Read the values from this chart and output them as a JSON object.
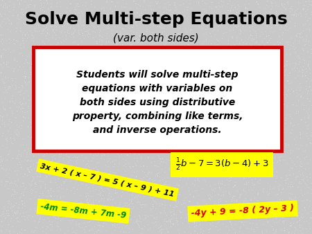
{
  "title_main": "Solve Multi-step Equations",
  "title_sub": "(var. both sides)",
  "box_text": "Students will solve multi-step\nequations with variables on\nboth sides using distributive\nproperty, combining like terms,\nand inverse operations.",
  "bg_color": "#c8c8c8",
  "box_fill": "#ffffff",
  "box_edge": "#cc0000",
  "yellow": "#ffff00",
  "eq1_text": "3x + 2 ( x – 7 ) = 5 ( x – 9 ) + 11",
  "eq2_line1": "$\\frac{1}{2}$",
  "eq2_rest": "$b-7=3(b-4)+3$",
  "eq3_text": "-4m = -8m + 7m -9",
  "eq4_text": "-4y + 9 = -8 ( 2y – 3 )",
  "eq3_color": "#008800",
  "eq4_color": "#cc0000",
  "eq1_color": "#000000",
  "eq2_color": "#000000"
}
